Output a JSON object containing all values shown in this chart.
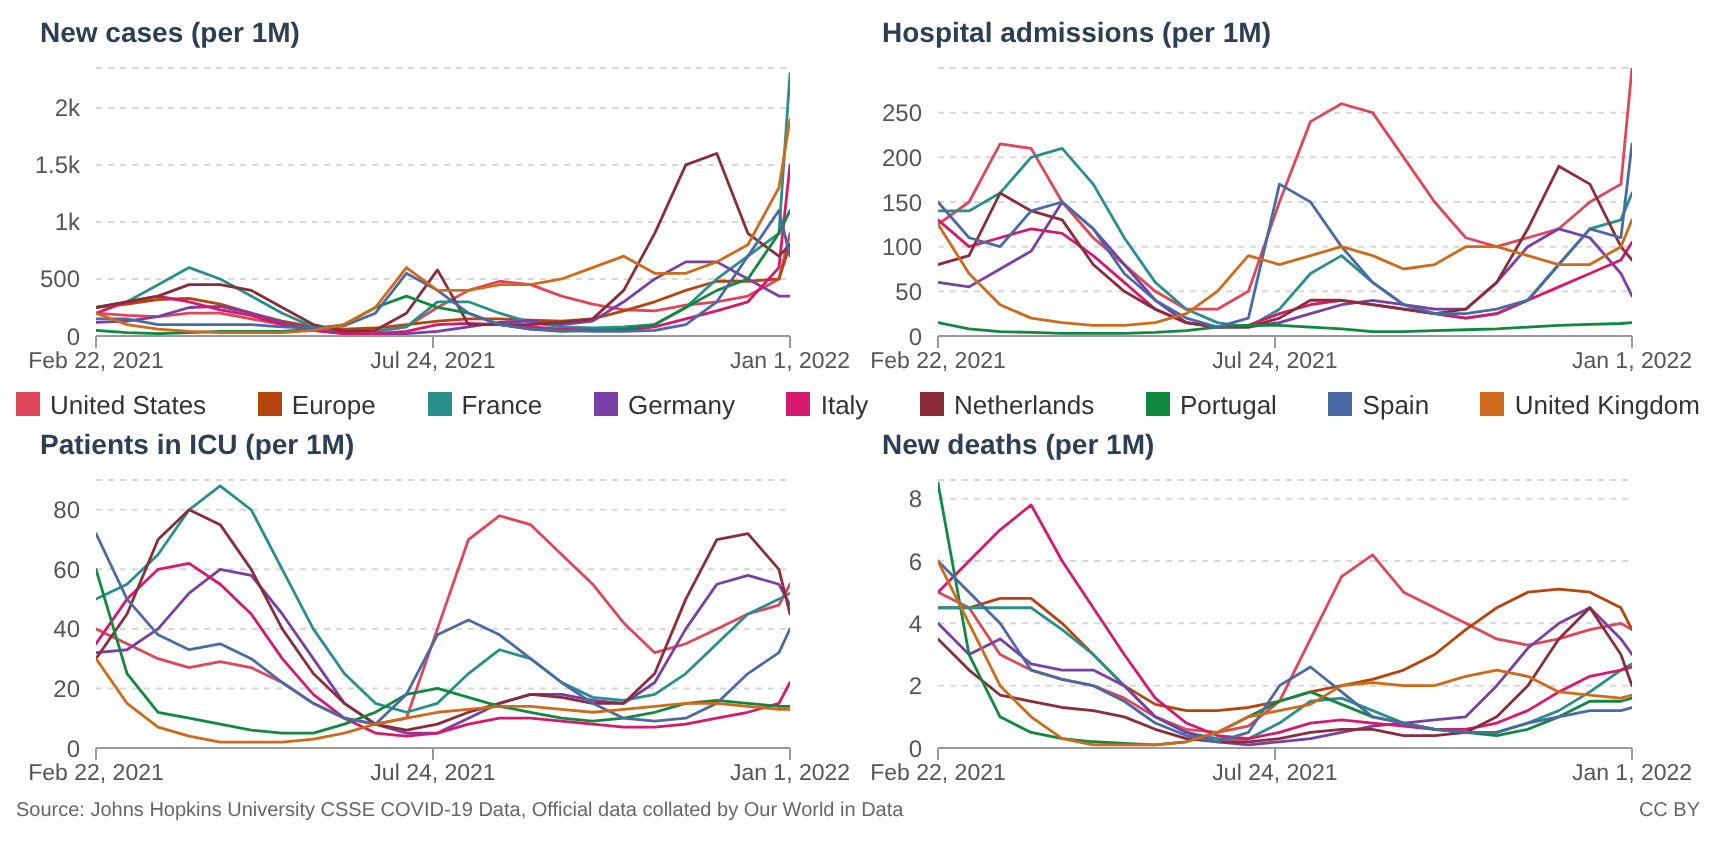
{
  "chart_data": [
    {
      "type": "line",
      "title": "New cases (per 1M)",
      "x": [
        "2021-02-22",
        "2021-03-08",
        "2021-03-22",
        "2021-04-05",
        "2021-04-19",
        "2021-05-03",
        "2021-05-17",
        "2021-05-31",
        "2021-06-14",
        "2021-06-28",
        "2021-07-12",
        "2021-07-26",
        "2021-08-09",
        "2021-08-23",
        "2021-09-06",
        "2021-09-20",
        "2021-10-04",
        "2021-10-18",
        "2021-11-01",
        "2021-11-15",
        "2021-11-29",
        "2021-12-13",
        "2021-12-27",
        "2022-01-01"
      ],
      "xlim": [
        "2021-02-22",
        "2022-01-01"
      ],
      "xticks": [
        {
          "value": "2021-02-22",
          "label": "Feb 22, 2021"
        },
        {
          "value": "2021-07-24",
          "label": "Jul 24, 2021"
        },
        {
          "value": "2022-01-01",
          "label": "Jan 1, 2022"
        }
      ],
      "ylim": [
        0,
        2350
      ],
      "yticks": [
        0,
        500,
        {
          "value": 1000,
          "label": "1k"
        },
        {
          "value": 1500,
          "label": "1.5k"
        },
        {
          "value": 2000,
          "label": "2k"
        }
      ],
      "grid": "y",
      "marker": "none",
      "line_style": "solid",
      "legend": "bottom",
      "annotations": [
        "Source: Johns Hopkins University CSSE COVID-19 Data, Official data collated by Our World in Data",
        "CC BY"
      ],
      "series": [
        {
          "name": "United States",
          "color": "#e0465a",
          "values": [
            200,
            180,
            170,
            200,
            200,
            150,
            100,
            60,
            40,
            40,
            80,
            250,
            400,
            480,
            450,
            350,
            280,
            230,
            220,
            270,
            300,
            350,
            500,
            900
          ]
        },
        {
          "name": "Europe",
          "color": "#b5440e",
          "values": [
            250,
            280,
            320,
            330,
            280,
            200,
            130,
            80,
            60,
            70,
            100,
            130,
            150,
            150,
            140,
            130,
            150,
            220,
            300,
            400,
            480,
            480,
            500,
            800
          ]
        },
        {
          "name": "France",
          "color": "#2a8f8c",
          "values": [
            250,
            300,
            450,
            600,
            500,
            350,
            200,
            80,
            40,
            40,
            80,
            300,
            300,
            200,
            120,
            80,
            70,
            80,
            100,
            250,
            500,
            700,
            900,
            2300
          ]
        },
        {
          "name": "Germany",
          "color": "#7a3fa5",
          "values": [
            120,
            130,
            170,
            250,
            260,
            200,
            120,
            50,
            20,
            10,
            20,
            40,
            80,
            120,
            130,
            100,
            130,
            300,
            500,
            650,
            650,
            500,
            350,
            350
          ]
        },
        {
          "name": "Italy",
          "color": "#d6186e",
          "values": [
            200,
            300,
            350,
            300,
            230,
            180,
            100,
            50,
            20,
            20,
            40,
            100,
            110,
            100,
            80,
            60,
            50,
            50,
            80,
            150,
            220,
            300,
            600,
            1500
          ]
        },
        {
          "name": "Netherlands",
          "color": "#8a2d3b",
          "values": [
            250,
            300,
            350,
            450,
            450,
            400,
            250,
            100,
            40,
            50,
            200,
            580,
            100,
            100,
            100,
            120,
            150,
            400,
            900,
            1500,
            1600,
            900,
            700,
            800
          ]
        },
        {
          "name": "Portugal",
          "color": "#11883f",
          "values": [
            50,
            30,
            20,
            30,
            40,
            40,
            40,
            60,
            100,
            250,
            350,
            250,
            200,
            100,
            60,
            40,
            50,
            60,
            100,
            250,
            400,
            500,
            900,
            1100
          ]
        },
        {
          "name": "Spain",
          "color": "#4a6aa5",
          "values": [
            150,
            150,
            100,
            100,
            100,
            100,
            80,
            70,
            90,
            200,
            550,
            400,
            200,
            100,
            60,
            50,
            40,
            40,
            50,
            100,
            300,
            700,
            1100,
            700
          ]
        },
        {
          "name": "United Kingdom",
          "color": "#cf6a1a",
          "values": [
            200,
            100,
            60,
            40,
            30,
            30,
            30,
            50,
            100,
            250,
            600,
            400,
            400,
            450,
            450,
            500,
            600,
            700,
            550,
            550,
            650,
            800,
            1300,
            1900
          ]
        }
      ]
    },
    {
      "type": "line",
      "title": "Hospital admissions (per 1M)",
      "x": [
        "2021-02-22",
        "2021-03-08",
        "2021-03-22",
        "2021-04-05",
        "2021-04-19",
        "2021-05-03",
        "2021-05-17",
        "2021-05-31",
        "2021-06-14",
        "2021-06-28",
        "2021-07-12",
        "2021-07-26",
        "2021-08-09",
        "2021-08-23",
        "2021-09-06",
        "2021-09-20",
        "2021-10-04",
        "2021-10-18",
        "2021-11-01",
        "2021-11-15",
        "2021-11-29",
        "2021-12-13",
        "2021-12-27",
        "2022-01-01"
      ],
      "xlim": [
        "2021-02-22",
        "2022-01-01"
      ],
      "xticks": [
        {
          "value": "2021-02-22",
          "label": "Feb 22, 2021"
        },
        {
          "value": "2021-07-24",
          "label": "Jul 24, 2021"
        },
        {
          "value": "2022-01-01",
          "label": "Jan 1, 2022"
        }
      ],
      "ylim": [
        0,
        300
      ],
      "yticks": [
        0,
        50,
        100,
        150,
        200,
        250
      ],
      "grid": "y",
      "marker": "none",
      "line_style": "solid",
      "series": [
        {
          "color": "#e0465a",
          "values": [
            125,
            150,
            215,
            210,
            150,
            110,
            80,
            50,
            30,
            30,
            50,
            150,
            240,
            260,
            250,
            200,
            150,
            110,
            100,
            110,
            120,
            150,
            170,
            300
          ]
        },
        {
          "color": "#2a8f8c",
          "values": [
            140,
            140,
            160,
            200,
            210,
            170,
            110,
            60,
            30,
            15,
            10,
            30,
            70,
            90,
            60,
            35,
            25,
            20,
            25,
            40,
            80,
            120,
            130,
            160
          ]
        },
        {
          "color": "#7a3fa5",
          "values": [
            60,
            55,
            75,
            95,
            150,
            120,
            80,
            40,
            15,
            10,
            10,
            15,
            25,
            35,
            40,
            35,
            30,
            30,
            60,
            100,
            120,
            110,
            70,
            45
          ]
        },
        {
          "color": "#d6186e",
          "values": [
            130,
            100,
            110,
            120,
            115,
            90,
            60,
            30,
            15,
            10,
            12,
            25,
            35,
            40,
            35,
            30,
            25,
            20,
            25,
            40,
            55,
            70,
            85,
            105
          ]
        },
        {
          "color": "#8a2d3b",
          "values": [
            80,
            90,
            160,
            140,
            130,
            80,
            50,
            30,
            15,
            10,
            10,
            20,
            40,
            40,
            35,
            30,
            25,
            30,
            60,
            120,
            190,
            170,
            100,
            85
          ]
        },
        {
          "color": "#11883f",
          "values": [
            15,
            8,
            5,
            4,
            3,
            3,
            3,
            4,
            6,
            10,
            12,
            12,
            10,
            8,
            5,
            5,
            6,
            7,
            8,
            10,
            12,
            13,
            14,
            15
          ]
        },
        {
          "color": "#4a6aa5",
          "values": [
            150,
            110,
            100,
            140,
            150,
            120,
            70,
            40,
            20,
            10,
            20,
            170,
            150,
            100,
            60,
            35,
            25,
            25,
            30,
            40,
            80,
            120,
            110,
            215
          ]
        },
        {
          "color": "#cf6a1a",
          "values": [
            125,
            70,
            35,
            20,
            15,
            12,
            12,
            15,
            25,
            50,
            90,
            80,
            90,
            100,
            90,
            75,
            80,
            100,
            100,
            90,
            80,
            80,
            100,
            130
          ]
        }
      ]
    },
    {
      "type": "line",
      "title": "Patients in ICU (per 1M)",
      "x": [
        "2021-02-22",
        "2021-03-08",
        "2021-03-22",
        "2021-04-05",
        "2021-04-19",
        "2021-05-03",
        "2021-05-17",
        "2021-05-31",
        "2021-06-14",
        "2021-06-28",
        "2021-07-12",
        "2021-07-26",
        "2021-08-09",
        "2021-08-23",
        "2021-09-06",
        "2021-09-20",
        "2021-10-04",
        "2021-10-18",
        "2021-11-01",
        "2021-11-15",
        "2021-11-29",
        "2021-12-13",
        "2021-12-27",
        "2022-01-01"
      ],
      "xlim": [
        "2021-02-22",
        "2022-01-01"
      ],
      "xticks": [
        {
          "value": "2021-02-22",
          "label": "Feb 22, 2021"
        },
        {
          "value": "2021-07-24",
          "label": "Jul 24, 2021"
        },
        {
          "value": "2022-01-01",
          "label": "Jan 1, 2022"
        }
      ],
      "ylim": [
        0,
        90
      ],
      "yticks": [
        0,
        20,
        40,
        60,
        80
      ],
      "grid": "y",
      "marker": "none",
      "line_style": "solid",
      "series": [
        {
          "color": "#e0465a",
          "values": [
            40,
            35,
            30,
            27,
            29,
            27,
            22,
            15,
            10,
            8,
            10,
            40,
            70,
            78,
            75,
            65,
            55,
            42,
            32,
            35,
            40,
            45,
            48,
            55
          ]
        },
        {
          "color": "#2a8f8c",
          "values": [
            50,
            55,
            65,
            80,
            88,
            80,
            60,
            40,
            25,
            15,
            12,
            15,
            25,
            33,
            30,
            22,
            17,
            16,
            18,
            25,
            35,
            45,
            50,
            52
          ]
        },
        {
          "color": "#7a3fa5",
          "values": [
            32,
            33,
            40,
            52,
            60,
            58,
            45,
            30,
            15,
            8,
            5,
            5,
            10,
            15,
            18,
            18,
            16,
            15,
            22,
            40,
            55,
            58,
            55,
            48
          ]
        },
        {
          "color": "#d6186e",
          "values": [
            35,
            50,
            60,
            62,
            55,
            45,
            30,
            18,
            10,
            5,
            4,
            5,
            8,
            10,
            10,
            9,
            8,
            7,
            7,
            8,
            10,
            12,
            15,
            22
          ]
        },
        {
          "color": "#8a2d3b",
          "values": [
            30,
            45,
            70,
            80,
            75,
            60,
            40,
            25,
            15,
            8,
            6,
            8,
            12,
            15,
            18,
            17,
            15,
            15,
            25,
            50,
            70,
            72,
            60,
            45
          ]
        },
        {
          "color": "#11883f",
          "values": [
            60,
            25,
            12,
            10,
            8,
            6,
            5,
            5,
            8,
            12,
            18,
            20,
            17,
            14,
            12,
            10,
            9,
            10,
            12,
            15,
            16,
            15,
            14,
            14
          ]
        },
        {
          "color": "#4a6aa5",
          "values": [
            72,
            50,
            38,
            33,
            35,
            30,
            22,
            15,
            10,
            8,
            18,
            38,
            43,
            38,
            30,
            22,
            15,
            10,
            9,
            10,
            15,
            25,
            32,
            40
          ]
        },
        {
          "color": "#cf6a1a",
          "values": [
            30,
            15,
            7,
            4,
            2,
            2,
            2,
            3,
            5,
            8,
            10,
            12,
            13,
            14,
            14,
            13,
            12,
            13,
            14,
            15,
            15,
            14,
            13,
            13
          ]
        }
      ]
    },
    {
      "type": "line",
      "title": "New deaths (per 1M)",
      "x": [
        "2021-02-22",
        "2021-03-08",
        "2021-03-22",
        "2021-04-05",
        "2021-04-19",
        "2021-05-03",
        "2021-05-17",
        "2021-05-31",
        "2021-06-14",
        "2021-06-28",
        "2021-07-12",
        "2021-07-26",
        "2021-08-09",
        "2021-08-23",
        "2021-09-06",
        "2021-09-20",
        "2021-10-04",
        "2021-10-18",
        "2021-11-01",
        "2021-11-15",
        "2021-11-29",
        "2021-12-13",
        "2021-12-27",
        "2022-01-01"
      ],
      "xlim": [
        "2021-02-22",
        "2022-01-01"
      ],
      "xticks": [
        {
          "value": "2021-02-22",
          "label": "Feb 22, 2021"
        },
        {
          "value": "2021-07-24",
          "label": "Jul 24, 2021"
        },
        {
          "value": "2022-01-01",
          "label": "Jan 1, 2022"
        }
      ],
      "ylim": [
        0,
        8.6
      ],
      "yticks": [
        0,
        2,
        4,
        6,
        8
      ],
      "grid": "y",
      "marker": "none",
      "line_style": "solid",
      "series": [
        {
          "color": "#e0465a",
          "values": [
            5,
            4.5,
            3,
            2.5,
            2.2,
            2,
            1.6,
            1,
            0.6,
            0.5,
            0.7,
            1.5,
            3.5,
            5.5,
            6.2,
            5,
            4.5,
            4,
            3.5,
            3.3,
            3.5,
            3.8,
            4,
            3.8
          ]
        },
        {
          "color": "#b5440e",
          "values": [
            4.5,
            4.5,
            4.8,
            4.8,
            4,
            3,
            2,
            1.4,
            1.2,
            1.2,
            1.3,
            1.5,
            1.8,
            2,
            2.2,
            2.5,
            3,
            3.8,
            4.5,
            5,
            5.1,
            5,
            4.5,
            3.8
          ]
        },
        {
          "color": "#2a8f8c",
          "values": [
            4.5,
            4.5,
            4.5,
            4.5,
            3.8,
            3,
            2,
            1,
            0.5,
            0.3,
            0.3,
            0.8,
            1.5,
            1.6,
            1.2,
            0.8,
            0.6,
            0.5,
            0.5,
            0.8,
            1.2,
            1.8,
            2.5,
            2.7
          ]
        },
        {
          "color": "#7a3fa5",
          "values": [
            4,
            3,
            3.5,
            2.7,
            2.5,
            2.5,
            2,
            1,
            0.5,
            0.2,
            0.1,
            0.2,
            0.3,
            0.5,
            0.7,
            0.8,
            0.9,
            1,
            2,
            3.2,
            4,
            4.5,
            3.5,
            3
          ]
        },
        {
          "color": "#d6186e",
          "values": [
            5,
            6,
            7,
            7.8,
            6,
            4.5,
            3,
            1.6,
            0.8,
            0.4,
            0.3,
            0.5,
            0.8,
            0.9,
            0.8,
            0.7,
            0.6,
            0.6,
            0.8,
            1.2,
            1.8,
            2.3,
            2.5,
            2.6
          ]
        },
        {
          "color": "#8a2d3b",
          "values": [
            3.5,
            2.5,
            1.7,
            1.5,
            1.3,
            1.2,
            1,
            0.6,
            0.3,
            0.2,
            0.2,
            0.3,
            0.5,
            0.6,
            0.6,
            0.4,
            0.4,
            0.5,
            1,
            2,
            3.5,
            4.5,
            3,
            2
          ]
        },
        {
          "color": "#11883f",
          "values": [
            8.5,
            3,
            1,
            0.5,
            0.3,
            0.2,
            0.15,
            0.1,
            0.2,
            0.5,
            1,
            1.5,
            1.8,
            1.4,
            1,
            0.8,
            0.6,
            0.5,
            0.4,
            0.6,
            1,
            1.5,
            1.5,
            1.6
          ]
        },
        {
          "color": "#4a6aa5",
          "values": [
            6,
            5,
            4,
            2.5,
            2.2,
            2,
            1.5,
            0.8,
            0.4,
            0.2,
            0.5,
            2,
            2.6,
            1.8,
            1,
            0.8,
            0.6,
            0.5,
            0.5,
            0.8,
            1,
            1.2,
            1.2,
            1.3
          ]
        },
        {
          "color": "#cf6a1a",
          "values": [
            6,
            4,
            2,
            1,
            0.3,
            0.1,
            0.1,
            0.1,
            0.2,
            0.5,
            1,
            1.2,
            1.4,
            2,
            2.1,
            2,
            2,
            2.3,
            2.5,
            2.3,
            1.8,
            1.7,
            1.6,
            1.7
          ]
        }
      ]
    }
  ]
}
